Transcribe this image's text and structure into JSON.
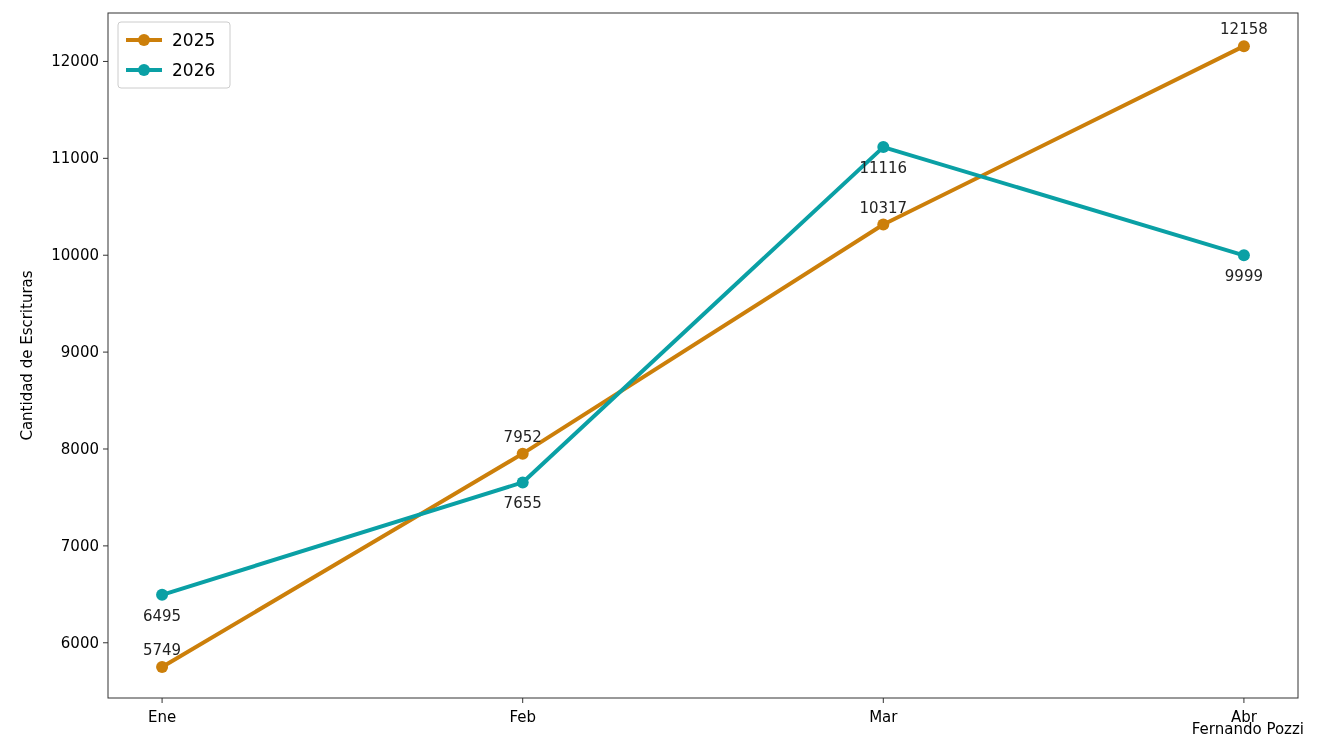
{
  "chart_data": {
    "type": "line",
    "ylabel": "Cantidad de Escrituras",
    "categories": [
      "Ene",
      "Feb",
      "Mar",
      "Abr"
    ],
    "series": [
      {
        "name": "2025",
        "color": "#cc7f0a",
        "values": [
          5749,
          7952,
          10317,
          12158
        ]
      },
      {
        "name": "2026",
        "color": "#0aa0a5",
        "values": [
          6495,
          7655,
          11116,
          9999
        ]
      }
    ],
    "ylim": [
      5430,
      12500
    ],
    "yticks": [
      6000,
      7000,
      8000,
      9000,
      10000,
      11000,
      12000
    ],
    "grid": false,
    "legend": "top left",
    "marker": "circle",
    "line_style": "solid",
    "data_labels": true,
    "annotations": [
      "Fernando Pozzi"
    ]
  }
}
